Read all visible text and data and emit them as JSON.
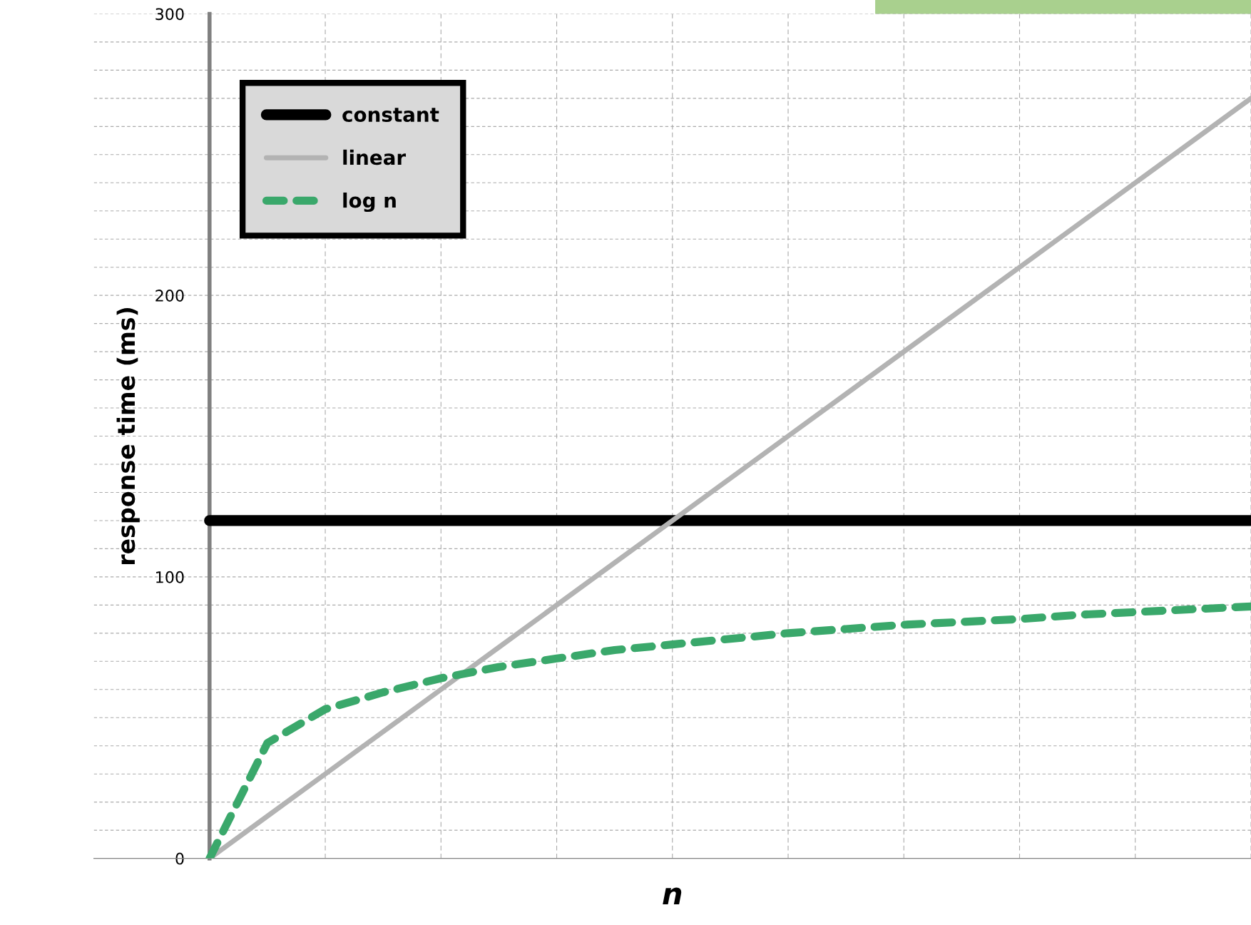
{
  "chart_data": {
    "type": "line",
    "xlabel": "n",
    "ylabel": "response time (ms)",
    "categories": [
      null,
      null,
      null,
      null,
      null,
      null,
      null,
      null,
      null,
      null,
      null,
      null,
      null,
      null,
      null,
      null,
      null,
      null,
      null
    ],
    "series": [
      {
        "name": "constant",
        "color": "#000000",
        "line_style": "solid",
        "values": [
          120,
          120,
          120,
          120,
          120,
          120,
          120,
          120,
          120,
          120,
          120,
          120,
          120,
          120,
          120,
          120,
          120,
          120,
          120
        ]
      },
      {
        "name": "linear",
        "color": "#b3b3b3",
        "line_style": "solid",
        "values": [
          0,
          15,
          30,
          45,
          60,
          75,
          90,
          105,
          120,
          135,
          150,
          165,
          180,
          195,
          210,
          225,
          240,
          255,
          270
        ]
      },
      {
        "name": "log n",
        "color": "#3aa86b",
        "line_style": "dashed",
        "values": [
          0,
          41,
          53,
          59,
          64,
          68,
          71,
          74,
          76,
          78,
          80,
          81.5,
          83,
          84,
          85,
          86.5,
          87.5,
          88.5,
          89.5
        ]
      }
    ],
    "ylim": [
      0,
      300
    ],
    "yticks": [
      0,
      {
        "value": 10,
        "label": null
      },
      {
        "value": 20,
        "label": null
      },
      {
        "value": 30,
        "label": null
      },
      {
        "value": 40,
        "label": null
      },
      {
        "value": 50,
        "label": null
      },
      {
        "value": 60,
        "label": null
      },
      {
        "value": 70,
        "label": null
      },
      {
        "value": 80,
        "label": null
      },
      {
        "value": 90,
        "label": null
      },
      100,
      {
        "value": 110,
        "label": null
      },
      {
        "value": 120,
        "label": null
      },
      {
        "value": 130,
        "label": null
      },
      {
        "value": 140,
        "label": null
      },
      {
        "value": 150,
        "label": null
      },
      {
        "value": 160,
        "label": null
      },
      {
        "value": 170,
        "label": null
      },
      {
        "value": 180,
        "label": null
      },
      {
        "value": 190,
        "label": null
      },
      200,
      {
        "value": 210,
        "label": null
      },
      {
        "value": 220,
        "label": null
      },
      {
        "value": 230,
        "label": null
      },
      {
        "value": 240,
        "label": null
      },
      {
        "value": 250,
        "label": null
      },
      {
        "value": 260,
        "label": null
      },
      {
        "value": 270,
        "label": null
      },
      {
        "value": 280,
        "label": null
      },
      {
        "value": 290,
        "label": null
      },
      300
    ],
    "grid": true,
    "legend": "top left",
    "marker": "none"
  }
}
